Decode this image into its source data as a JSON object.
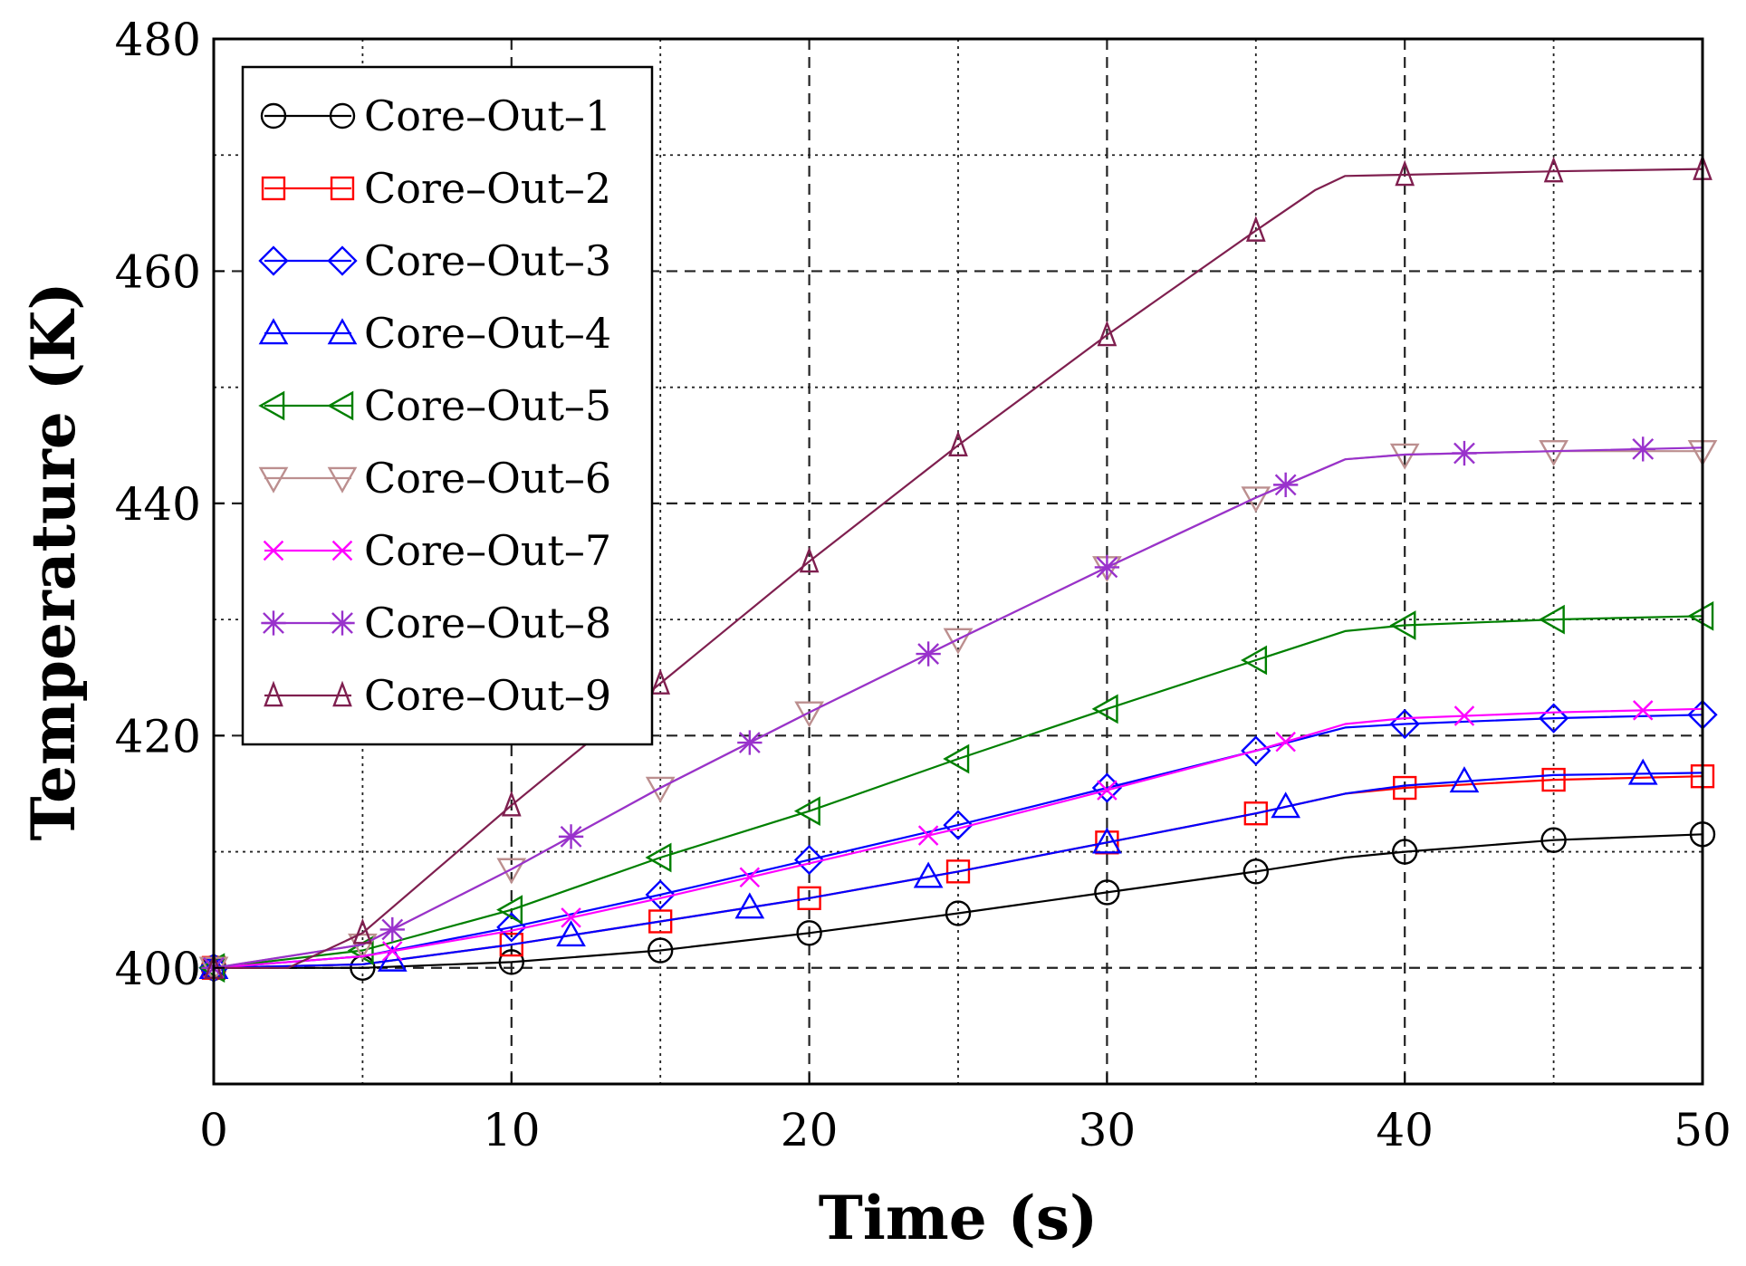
{
  "chart_data": {
    "type": "line",
    "title": "",
    "xlabel": "Time (s)",
    "ylabel": "Temperature (K)",
    "xlim": [
      0,
      50
    ],
    "ylim": [
      390,
      480
    ],
    "xticks": [
      0,
      10,
      20,
      30,
      40,
      50
    ],
    "yticks": [
      400,
      420,
      440,
      460,
      480
    ],
    "grid": true,
    "legend_position": "top-left",
    "series": [
      {
        "name": "Core–Out–1",
        "color": "#000000",
        "marker": "circle",
        "x": [
          0,
          5,
          10,
          15,
          20,
          25,
          30,
          35,
          38,
          40,
          45,
          50
        ],
        "y": [
          400,
          400,
          400.5,
          401.5,
          403,
          404.7,
          406.5,
          408.3,
          409.5,
          410,
          411,
          411.5
        ],
        "marker_x": [
          0,
          5,
          10,
          15,
          20,
          25,
          30,
          35,
          40,
          45,
          50
        ]
      },
      {
        "name": "Core–Out–2",
        "color": "#ff0000",
        "marker": "square",
        "x": [
          0,
          5,
          10,
          15,
          20,
          25,
          30,
          35,
          38,
          40,
          45,
          50
        ],
        "y": [
          400,
          400.3,
          402,
          404,
          406,
          408.3,
          410.8,
          413.3,
          415,
          415.5,
          416.2,
          416.5
        ],
        "marker_x": [
          0,
          10,
          15,
          20,
          25,
          30,
          35,
          40,
          45,
          50
        ]
      },
      {
        "name": "Core–Out–3",
        "color": "#0000ff",
        "marker": "diamond",
        "x": [
          0,
          5,
          10,
          15,
          20,
          25,
          30,
          35,
          38,
          40,
          45,
          50
        ],
        "y": [
          400,
          401,
          403.5,
          406.3,
          409.3,
          412.3,
          415.5,
          418.7,
          420.7,
          421,
          421.5,
          421.8
        ],
        "marker_x": [
          0,
          10,
          15,
          20,
          25,
          30,
          35,
          40,
          45,
          50
        ]
      },
      {
        "name": "Core–Out–4",
        "color": "#0000ff",
        "marker": "triangle-up",
        "x": [
          0,
          5,
          10,
          15,
          20,
          25,
          30,
          35,
          38,
          40,
          45,
          50
        ],
        "y": [
          400,
          400.3,
          402,
          404,
          406,
          408.3,
          410.8,
          413.3,
          415,
          415.7,
          416.6,
          416.8
        ],
        "marker_x": [
          0,
          6,
          12,
          18,
          24,
          30,
          36,
          42,
          48
        ]
      },
      {
        "name": "Core–Out–5",
        "color": "#008000",
        "marker": "triangle-left",
        "x": [
          0,
          5,
          10,
          15,
          20,
          25,
          30,
          35,
          38,
          40,
          45,
          50
        ],
        "y": [
          400,
          401.5,
          405,
          409.5,
          413.5,
          418,
          422.3,
          426.5,
          429,
          429.5,
          430,
          430.3
        ],
        "marker_x": [
          0,
          5,
          10,
          15,
          20,
          25,
          30,
          35,
          40,
          45,
          50
        ]
      },
      {
        "name": "Core–Out–6",
        "color": "#bc8f8f",
        "marker": "triangle-down",
        "x": [
          0,
          5,
          10,
          15,
          20,
          25,
          30,
          35,
          38,
          40,
          45,
          50
        ],
        "y": [
          400,
          402,
          408.5,
          415.5,
          422,
          428.3,
          434.5,
          440.5,
          443.8,
          444.2,
          444.5,
          444.5
        ],
        "marker_x": [
          0,
          5,
          10,
          15,
          20,
          25,
          30,
          35,
          40,
          45,
          50
        ]
      },
      {
        "name": "Core–Out–7",
        "color": "#ff00ff",
        "marker": "x",
        "x": [
          0,
          5,
          10,
          15,
          20,
          25,
          30,
          35,
          38,
          40,
          45,
          50
        ],
        "y": [
          400,
          401,
          403.2,
          406,
          409,
          412,
          415.3,
          418.7,
          421,
          421.5,
          422,
          422.3
        ],
        "marker_x": [
          0,
          6,
          12,
          18,
          24,
          30,
          36,
          42,
          48
        ]
      },
      {
        "name": "Core–Out–8",
        "color": "#9932cc",
        "marker": "star",
        "x": [
          0,
          5,
          10,
          15,
          20,
          25,
          30,
          35,
          38,
          40,
          45,
          50
        ],
        "y": [
          400,
          402,
          408.5,
          415.5,
          422,
          428.3,
          434.5,
          440.5,
          443.8,
          444.2,
          444.5,
          444.8
        ],
        "marker_x": [
          0,
          6,
          12,
          18,
          24,
          30,
          36,
          42,
          48
        ]
      },
      {
        "name": "Core–Out–9",
        "color": "#7f1f4f",
        "marker": "triangle-up-thin",
        "x": [
          0,
          2.5,
          5,
          10,
          15,
          20,
          25,
          30,
          35,
          37,
          38,
          40,
          45,
          50
        ],
        "y": [
          400,
          400,
          403,
          414,
          424.5,
          435,
          445,
          454.5,
          463.5,
          467,
          468.2,
          468.3,
          468.6,
          468.8
        ],
        "marker_x": [
          0,
          5,
          10,
          15,
          20,
          25,
          30,
          35,
          40,
          45,
          50
        ]
      }
    ]
  }
}
